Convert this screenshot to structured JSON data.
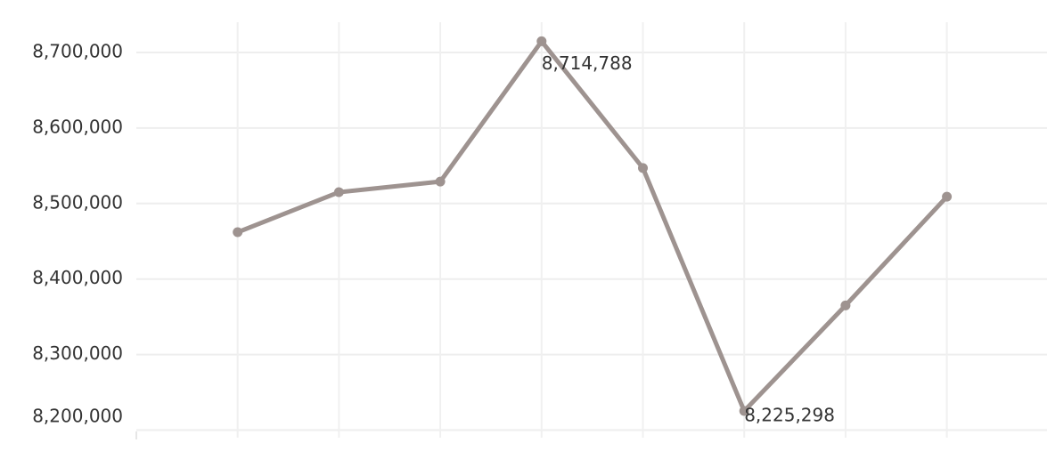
{
  "chart_data": {
    "type": "line",
    "categories": [
      null,
      null,
      null,
      null,
      null,
      null,
      null,
      null
    ],
    "series": [
      {
        "color": "#9e9390",
        "values": [
          8462000,
          8515000,
          8529000,
          8714788,
          8547000,
          8225298,
          8365000,
          8509000
        ],
        "value_labels": [
          null,
          null,
          null,
          "8,714,788",
          null,
          "8,225,298",
          null,
          null
        ]
      }
    ],
    "ylim": [
      8190000,
      8740000
    ],
    "yticks": [
      {
        "value": 8200000,
        "label": "8,200,000"
      },
      {
        "value": 8300000,
        "label": "8,300,000"
      },
      {
        "value": 8400000,
        "label": "8,400,000"
      },
      {
        "value": 8500000,
        "label": "8,500,000"
      },
      {
        "value": 8600000,
        "label": "8,600,000"
      },
      {
        "value": 8700000,
        "label": "8,700,000"
      }
    ],
    "grid": true
  }
}
